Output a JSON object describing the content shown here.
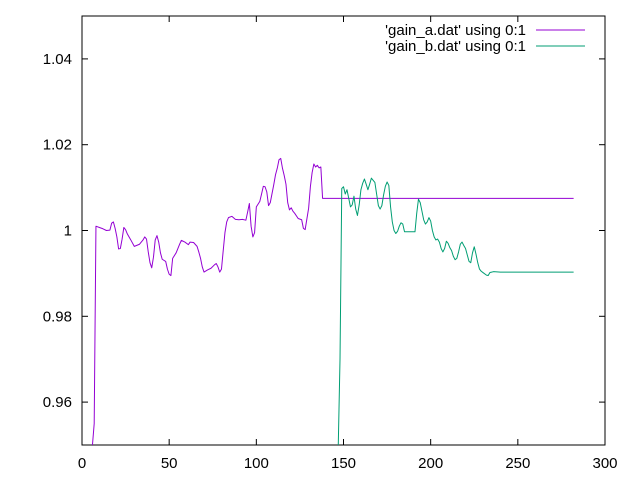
{
  "chart_data": {
    "type": "line",
    "xlim": [
      0,
      300
    ],
    "ylim": [
      0.95,
      1.05
    ],
    "x_ticks": [
      {
        "value": 0,
        "label": "0"
      },
      {
        "value": 50,
        "label": "50"
      },
      {
        "value": 100,
        "label": "100"
      },
      {
        "value": 150,
        "label": "150"
      },
      {
        "value": 200,
        "label": "200"
      },
      {
        "value": 250,
        "label": "250"
      },
      {
        "value": 300,
        "label": "300"
      }
    ],
    "y_ticks": [
      {
        "value": 0.96,
        "label": "0.96"
      },
      {
        "value": 0.98,
        "label": "0.98"
      },
      {
        "value": 1.0,
        "label": "1"
      },
      {
        "value": 1.02,
        "label": "1.02"
      },
      {
        "value": 1.04,
        "label": "1.04"
      }
    ],
    "grid": false,
    "legend_position": "top-right",
    "series": [
      {
        "name": "'gain_a.dat' using 0:1",
        "color": "#9400d3",
        "points": [
          [
            6,
            0.95
          ],
          [
            7,
            0.955
          ],
          [
            8,
            1.001
          ],
          [
            10,
            1.0007
          ],
          [
            12,
            1.0004
          ],
          [
            14,
            1.0
          ],
          [
            16,
            1.0001
          ],
          [
            17,
            1.0017
          ],
          [
            18,
            1.002
          ],
          [
            19,
            1.0005
          ],
          [
            20,
            0.9985
          ],
          [
            21,
            0.9957
          ],
          [
            22,
            0.9958
          ],
          [
            23,
            0.998
          ],
          [
            24,
            1.0007
          ],
          [
            25,
            1.0002
          ],
          [
            26,
            0.9992
          ],
          [
            28,
            0.9978
          ],
          [
            30,
            0.9963
          ],
          [
            33,
            0.9968
          ],
          [
            35,
            0.9978
          ],
          [
            36,
            0.9985
          ],
          [
            37,
            0.998
          ],
          [
            38,
            0.995
          ],
          [
            39,
            0.9925
          ],
          [
            40,
            0.9913
          ],
          [
            41,
            0.9938
          ],
          [
            42,
            0.9978
          ],
          [
            43,
            0.9988
          ],
          [
            44,
            0.9973
          ],
          [
            45,
            0.9948
          ],
          [
            46,
            0.9933
          ],
          [
            48,
            0.9928
          ],
          [
            49,
            0.991
          ],
          [
            50,
            0.9898
          ],
          [
            51,
            0.9895
          ],
          [
            52,
            0.9935
          ],
          [
            54,
            0.9948
          ],
          [
            56,
            0.9968
          ],
          [
            57,
            0.9977
          ],
          [
            59,
            0.9973
          ],
          [
            61,
            0.9967
          ],
          [
            62,
            0.9973
          ],
          [
            64,
            0.9972
          ],
          [
            66,
            0.9963
          ],
          [
            67,
            0.995
          ],
          [
            68,
            0.9935
          ],
          [
            69,
            0.9915
          ],
          [
            70,
            0.9903
          ],
          [
            72,
            0.9908
          ],
          [
            74,
            0.9912
          ],
          [
            76,
            0.992
          ],
          [
            77,
            0.9923
          ],
          [
            78,
            0.9915
          ],
          [
            79,
            0.9903
          ],
          [
            80,
            0.991
          ],
          [
            81,
            0.9953
          ],
          [
            82,
            0.9995
          ],
          [
            83,
            1.002
          ],
          [
            84,
            1.003
          ],
          [
            86,
            1.0033
          ],
          [
            88,
            1.0026
          ],
          [
            90,
            1.0025
          ],
          [
            92,
            1.0026
          ],
          [
            94,
            1.0024
          ],
          [
            95,
            1.0043
          ],
          [
            96,
            1.0063
          ],
          [
            97,
            1.001
          ],
          [
            98,
            0.9985
          ],
          [
            99,
            0.9995
          ],
          [
            100,
            1.0055
          ],
          [
            102,
            1.0068
          ],
          [
            103,
            1.0085
          ],
          [
            104,
            1.0103
          ],
          [
            105,
            1.0102
          ],
          [
            106,
            1.009
          ],
          [
            107,
            1.0058
          ],
          [
            108,
            1.0065
          ],
          [
            110,
            1.0107
          ],
          [
            111,
            1.013
          ],
          [
            112,
            1.0145
          ],
          [
            113,
            1.0165
          ],
          [
            114,
            1.0168
          ],
          [
            115,
            1.0145
          ],
          [
            116,
            1.0128
          ],
          [
            117,
            1.0108
          ],
          [
            118,
            1.0065
          ],
          [
            119,
            1.0048
          ],
          [
            120,
            1.0053
          ],
          [
            121,
            1.0045
          ],
          [
            122,
            1.004
          ],
          [
            124,
            1.0028
          ],
          [
            126,
            1.0025
          ],
          [
            127,
            1.0005
          ],
          [
            128,
            1.0002
          ],
          [
            130,
            1.0052
          ],
          [
            131,
            1.0102
          ],
          [
            132,
            1.0135
          ],
          [
            133,
            1.0155
          ],
          [
            134,
            1.0148
          ],
          [
            135,
            1.0152
          ],
          [
            136,
            1.0146
          ],
          [
            137,
            1.0148
          ],
          [
            138,
            1.0075
          ],
          [
            282,
            1.0075
          ]
        ]
      },
      {
        "name": "'gain_b.dat' using 0:1",
        "color": "#009e73",
        "points": [
          [
            147,
            0.95
          ],
          [
            148,
            0.97
          ],
          [
            149,
            1.0098
          ],
          [
            150,
            1.0102
          ],
          [
            151,
            1.0085
          ],
          [
            152,
            1.0095
          ],
          [
            153,
            1.0075
          ],
          [
            154,
            1.0055
          ],
          [
            155,
            1.006
          ],
          [
            156,
            1.008
          ],
          [
            157,
            1.005
          ],
          [
            158,
            1.0035
          ],
          [
            159,
            1.006
          ],
          [
            160,
            1.0095
          ],
          [
            161,
            1.011
          ],
          [
            162,
            1.012
          ],
          [
            163,
            1.0108
          ],
          [
            164,
            1.0095
          ],
          [
            165,
            1.0108
          ],
          [
            166,
            1.0122
          ],
          [
            167,
            1.0117
          ],
          [
            168,
            1.0112
          ],
          [
            169,
            1.0085
          ],
          [
            170,
            1.0058
          ],
          [
            171,
            1.005
          ],
          [
            172,
            1.0058
          ],
          [
            173,
            1.0083
          ],
          [
            174,
            1.0103
          ],
          [
            175,
            1.0113
          ],
          [
            176,
            1.0105
          ],
          [
            177,
            1.0055
          ],
          [
            178,
            1.002
          ],
          [
            179,
            1.0
          ],
          [
            180,
            0.9993
          ],
          [
            181,
            0.9998
          ],
          [
            182,
            1.001
          ],
          [
            183,
            1.0018
          ],
          [
            184,
            1.0015
          ],
          [
            185,
            0.9997
          ],
          [
            187,
            0.9997
          ],
          [
            189,
            0.9997
          ],
          [
            191,
            0.9997
          ],
          [
            192,
            1.004
          ],
          [
            193,
            1.0073
          ],
          [
            194,
            1.0065
          ],
          [
            195,
            1.0045
          ],
          [
            196,
            1.0025
          ],
          [
            197,
            1.0015
          ],
          [
            198,
            1.002
          ],
          [
            199,
            1.003
          ],
          [
            200,
            1.0022
          ],
          [
            201,
            1.0
          ],
          [
            202,
            0.9985
          ],
          [
            203,
            0.9978
          ],
          [
            204,
            0.998
          ],
          [
            205,
            0.9973
          ],
          [
            206,
            0.9958
          ],
          [
            207,
            0.995
          ],
          [
            208,
            0.9958
          ],
          [
            209,
            0.9975
          ],
          [
            210,
            0.997
          ],
          [
            211,
            0.996
          ],
          [
            212,
            0.9953
          ],
          [
            213,
            0.994
          ],
          [
            214,
            0.9932
          ],
          [
            215,
            0.9935
          ],
          [
            216,
            0.995
          ],
          [
            217,
            0.9968
          ],
          [
            218,
            0.9973
          ],
          [
            219,
            0.9965
          ],
          [
            220,
            0.9958
          ],
          [
            221,
            0.9943
          ],
          [
            222,
            0.9928
          ],
          [
            223,
            0.9925
          ],
          [
            224,
            0.9948
          ],
          [
            225,
            0.9962
          ],
          [
            226,
            0.9945
          ],
          [
            227,
            0.9925
          ],
          [
            228,
            0.991
          ],
          [
            229,
            0.9905
          ],
          [
            230,
            0.9902
          ],
          [
            232,
            0.9896
          ],
          [
            233,
            0.9895
          ],
          [
            234,
            0.9902
          ],
          [
            235,
            0.9903
          ],
          [
            236,
            0.9904
          ],
          [
            240,
            0.9903
          ],
          [
            282,
            0.9903
          ]
        ]
      }
    ]
  }
}
